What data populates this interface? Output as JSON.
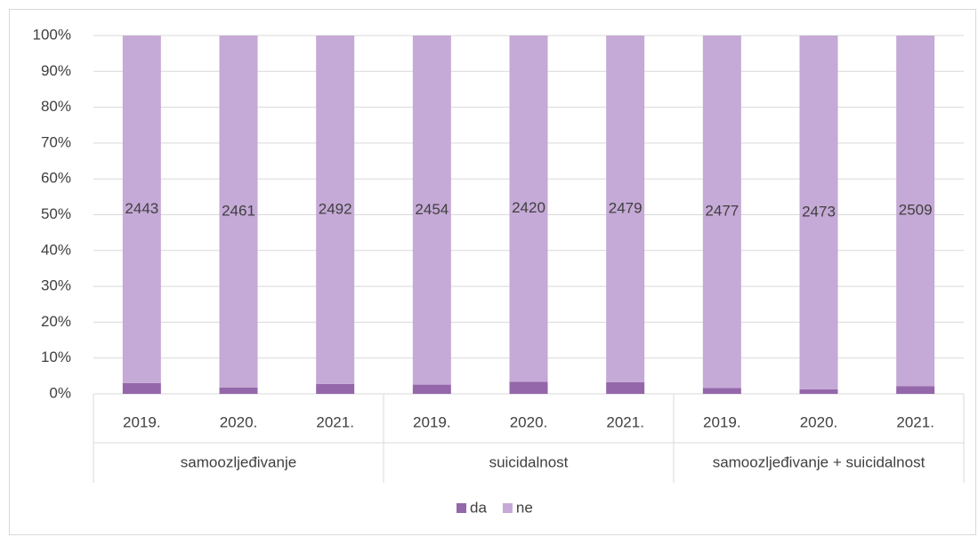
{
  "chart_data": {
    "type": "bar",
    "stacking": "percent",
    "categories": [
      "2019.",
      "2020.",
      "2021.",
      "2019.",
      "2020.",
      "2021.",
      "2019.",
      "2020.",
      "2021."
    ],
    "groups": [
      "samoozljeđivanje",
      "suicidalnost",
      "samoozljeđivanje + suicidalnost"
    ],
    "series": [
      {
        "name": "da",
        "color": "#9467aa",
        "values": [
          76,
          44,
          71,
          65,
          85,
          84,
          42,
          32,
          54
        ]
      },
      {
        "name": "ne",
        "color": "#c5a9d6",
        "values": [
          2443,
          2461,
          2492,
          2454,
          2420,
          2479,
          2477,
          2473,
          2509
        ]
      }
    ],
    "ylim": [
      0,
      100
    ],
    "yticks": [
      {
        "value": 0,
        "label": "0%"
      },
      {
        "value": 10,
        "label": "10%"
      },
      {
        "value": 20,
        "label": "20%"
      },
      {
        "value": 30,
        "label": "30%"
      },
      {
        "value": 40,
        "label": "40%"
      },
      {
        "value": 50,
        "label": "50%"
      },
      {
        "value": 60,
        "label": "60%"
      },
      {
        "value": 70,
        "label": "70%"
      },
      {
        "value": 80,
        "label": "80%"
      },
      {
        "value": 90,
        "label": "90%"
      },
      {
        "value": 100,
        "label": "100%"
      }
    ],
    "grid": true,
    "legend": "bottom"
  }
}
